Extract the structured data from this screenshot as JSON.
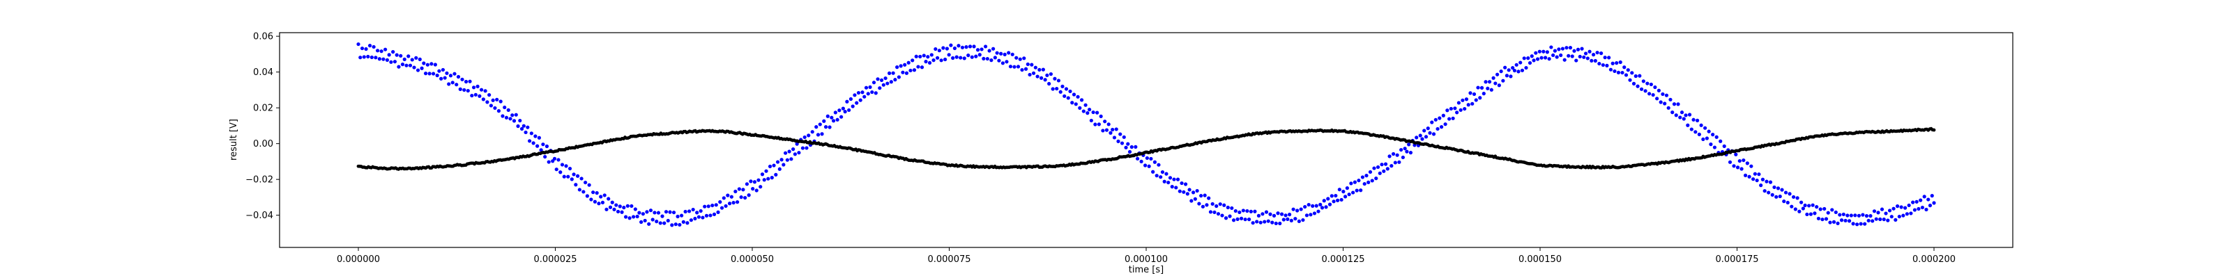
{
  "chart_data": {
    "type": "scatter",
    "title": "",
    "xlabel": "time [s]",
    "ylabel": "result [V]",
    "xlim": [
      -1e-05,
      0.00021
    ],
    "ylim": [
      -0.058,
      0.062
    ],
    "grid": false,
    "x_tick_labels": [
      "0.000000",
      "0.000025",
      "0.000050",
      "0.000075",
      "0.000100",
      "0.000125",
      "0.000150",
      "0.000175",
      "0.000200"
    ],
    "x_tick_values": [
      0.0,
      2.5e-05,
      5e-05,
      7.5e-05,
      0.0001,
      0.000125,
      0.00015,
      0.000175,
      0.0002
    ],
    "y_tick_labels": [
      "−0.04",
      "−0.02",
      "0.00",
      "0.02",
      "0.04",
      "0.06"
    ],
    "y_tick_values": [
      -0.04,
      -0.02,
      0.0,
      0.02,
      0.04,
      0.06
    ],
    "series": [
      {
        "color": "#0000ff",
        "marker": "dot",
        "points": [
          [
            0.0,
            0.052
          ],
          [
            5e-06,
            0.047
          ],
          [
            1e-05,
            0.04
          ],
          [
            1.5e-05,
            0.029
          ],
          [
            2e-05,
            0.013
          ],
          [
            2.5e-05,
            -0.01
          ],
          [
            3e-05,
            -0.029
          ],
          [
            3.5e-05,
            -0.039
          ],
          [
            4e-05,
            -0.042
          ],
          [
            4.5e-05,
            -0.037
          ],
          [
            5e-05,
            -0.024
          ],
          [
            5.5e-05,
            -0.006
          ],
          [
            6e-05,
            0.013
          ],
          [
            6.5e-05,
            0.03
          ],
          [
            7e-05,
            0.043
          ],
          [
            7.5e-05,
            0.051
          ],
          [
            8e-05,
            0.05
          ],
          [
            8.5e-05,
            0.043
          ],
          [
            9e-05,
            0.028
          ],
          [
            9.5e-05,
            0.009
          ],
          [
            0.0001,
            -0.01
          ],
          [
            0.000105,
            -0.026
          ],
          [
            0.00011,
            -0.038
          ],
          [
            0.000115,
            -0.042
          ],
          [
            0.00012,
            -0.039
          ],
          [
            0.000125,
            -0.028
          ],
          [
            0.00013,
            -0.014
          ],
          [
            0.000135,
            0.004
          ],
          [
            0.00014,
            0.021
          ],
          [
            0.000145,
            0.037
          ],
          [
            0.00015,
            0.049
          ],
          [
            0.000155,
            0.05
          ],
          [
            0.00016,
            0.042
          ],
          [
            0.000165,
            0.027
          ],
          [
            0.00017,
            0.009
          ],
          [
            0.000175,
            -0.01
          ],
          [
            0.00018,
            -0.027
          ],
          [
            0.000185,
            -0.038
          ],
          [
            0.00019,
            -0.042
          ],
          [
            0.000195,
            -0.039
          ],
          [
            0.0002,
            -0.032
          ]
        ]
      },
      {
        "color": "#000000",
        "marker": "dot",
        "points": [
          [
            0.0,
            -0.013
          ],
          [
            5e-06,
            -0.014
          ],
          [
            1e-05,
            -0.013
          ],
          [
            1.5e-05,
            -0.011
          ],
          [
            2e-05,
            -0.008
          ],
          [
            2.5e-05,
            -0.004
          ],
          [
            3e-05,
            0.0
          ],
          [
            3.5e-05,
            0.004
          ],
          [
            4e-05,
            0.006
          ],
          [
            4.5e-05,
            0.007
          ],
          [
            5e-05,
            0.005
          ],
          [
            5.5e-05,
            0.002
          ],
          [
            6e-05,
            -0.001
          ],
          [
            6.5e-05,
            -0.005
          ],
          [
            7e-05,
            -0.009
          ],
          [
            7.5e-05,
            -0.012
          ],
          [
            8e-05,
            -0.013
          ],
          [
            8.5e-05,
            -0.013
          ],
          [
            9e-05,
            -0.012
          ],
          [
            9.5e-05,
            -0.009
          ],
          [
            0.0001,
            -0.005
          ],
          [
            0.000105,
            -0.001
          ],
          [
            0.00011,
            0.003
          ],
          [
            0.000115,
            0.006
          ],
          [
            0.00012,
            0.007
          ],
          [
            0.000125,
            0.007
          ],
          [
            0.00013,
            0.004
          ],
          [
            0.000135,
            0.0
          ],
          [
            0.00014,
            -0.004
          ],
          [
            0.000145,
            -0.008
          ],
          [
            0.00015,
            -0.012
          ],
          [
            0.000155,
            -0.013
          ],
          [
            0.00016,
            -0.013
          ],
          [
            0.000165,
            -0.011
          ],
          [
            0.00017,
            -0.008
          ],
          [
            0.000175,
            -0.004
          ],
          [
            0.00018,
            0.0
          ],
          [
            0.000185,
            0.004
          ],
          [
            0.00019,
            0.006
          ],
          [
            0.000195,
            0.007
          ],
          [
            0.0002,
            0.008
          ]
        ]
      }
    ]
  }
}
